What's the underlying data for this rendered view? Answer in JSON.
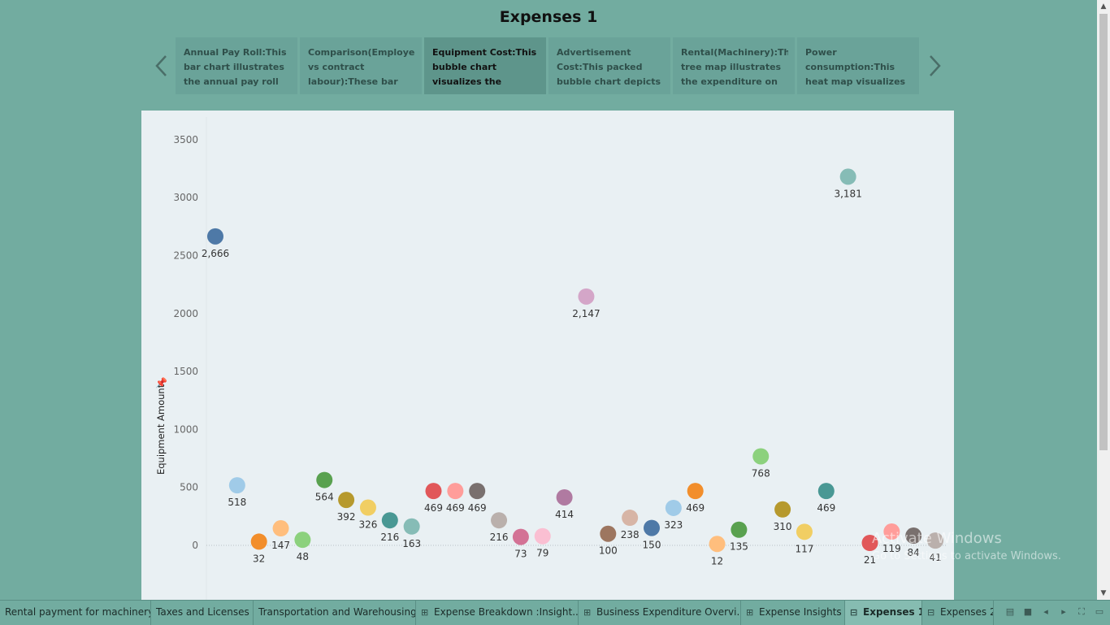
{
  "title": "Expenses 1",
  "story_points": [
    {
      "text": "Annual Pay Roll:This bar chart illustrates the annual pay roll"
    },
    {
      "text": "Comparison(Employee vs contract labour):These bar"
    },
    {
      "text": "Equipment Cost:This bubble chart visualizes the expenditure on",
      "active": true
    },
    {
      "text": "Advertisement Cost:This packed bubble chart depicts"
    },
    {
      "text": "Rental(Machinery):This tree map illustrates the expenditure on"
    },
    {
      "text": "Power consumption:This heat map visualizes the"
    }
  ],
  "chart_data": {
    "type": "scatter",
    "ylabel": "Equipment Amount",
    "ylim": [
      -300,
      3700
    ],
    "yticks": [
      0,
      500,
      1000,
      1500,
      2000,
      2500,
      3000,
      3500
    ],
    "grid": false,
    "points": [
      {
        "value": 2666,
        "label": "2,666",
        "color": "#4e79a7"
      },
      {
        "value": 518,
        "label": "518",
        "color": "#a0cbe8"
      },
      {
        "value": 32,
        "label": "32",
        "color": "#f28e2b"
      },
      {
        "value": 147,
        "label": "147",
        "color": "#ffbe7d"
      },
      {
        "value": 48,
        "label": "48",
        "color": "#8cd17d"
      },
      {
        "value": 564,
        "label": "564",
        "color": "#59a14f"
      },
      {
        "value": 392,
        "label": "392",
        "color": "#b6992d"
      },
      {
        "value": 326,
        "label": "326",
        "color": "#f1ce63"
      },
      {
        "value": 216,
        "label": "216",
        "color": "#499894"
      },
      {
        "value": 163,
        "label": "163",
        "color": "#86bcb6"
      },
      {
        "value": 469,
        "label": "469",
        "color": "#e15759"
      },
      {
        "value": 469,
        "label": "469",
        "color": "#ff9d9a"
      },
      {
        "value": 469,
        "label": "469",
        "color": "#79706e"
      },
      {
        "value": 216,
        "label": "216",
        "color": "#bab0ac"
      },
      {
        "value": 73,
        "label": "73",
        "color": "#d37295"
      },
      {
        "value": 79,
        "label": "79",
        "color": "#fabfd2"
      },
      {
        "value": 414,
        "label": "414",
        "color": "#b07aa1"
      },
      {
        "value": 2147,
        "label": "2,147",
        "color": "#d4a6c8"
      },
      {
        "value": 100,
        "label": "100",
        "color": "#9d7660"
      },
      {
        "value": 238,
        "label": "238",
        "color": "#d7b5a6"
      },
      {
        "value": 150,
        "label": "150",
        "color": "#4e79a7"
      },
      {
        "value": 323,
        "label": "323",
        "color": "#a0cbe8"
      },
      {
        "value": 469,
        "label": "469",
        "color": "#f28e2b"
      },
      {
        "value": 12,
        "label": "12",
        "color": "#ffbe7d"
      },
      {
        "value": 135,
        "label": "135",
        "color": "#59a14f"
      },
      {
        "value": 768,
        "label": "768",
        "color": "#8cd17d"
      },
      {
        "value": 310,
        "label": "310",
        "color": "#b6992d"
      },
      {
        "value": 117,
        "label": "117",
        "color": "#f1ce63"
      },
      {
        "value": 469,
        "label": "469",
        "color": "#499894"
      },
      {
        "value": 3181,
        "label": "3,181",
        "color": "#86bcb6"
      },
      {
        "value": 21,
        "label": "21",
        "color": "#e15759"
      },
      {
        "value": 119,
        "label": "119",
        "color": "#ff9d9a"
      },
      {
        "value": 84,
        "label": "84",
        "color": "#79706e"
      },
      {
        "value": 41,
        "label": "41",
        "color": "#bab0ac"
      }
    ]
  },
  "tabs": [
    {
      "label": "Rental payment for machinery",
      "icon": ""
    },
    {
      "label": "Taxes and Licenses",
      "icon": ""
    },
    {
      "label": "Transportation and Warehousing",
      "icon": ""
    },
    {
      "label": "Expense Breakdown :Insight...",
      "icon": "dashboard-icon"
    },
    {
      "label": "Business Expenditure Overvi...",
      "icon": "dashboard-icon"
    },
    {
      "label": "Expense Insights",
      "icon": "dashboard-icon"
    },
    {
      "label": "Expenses 1",
      "icon": "story-icon",
      "active": true
    },
    {
      "label": "Expenses 2",
      "icon": "story-icon"
    }
  ],
  "watermark": {
    "line1": "Activate Windows",
    "line2": "Go to Settings to activate Windows."
  }
}
